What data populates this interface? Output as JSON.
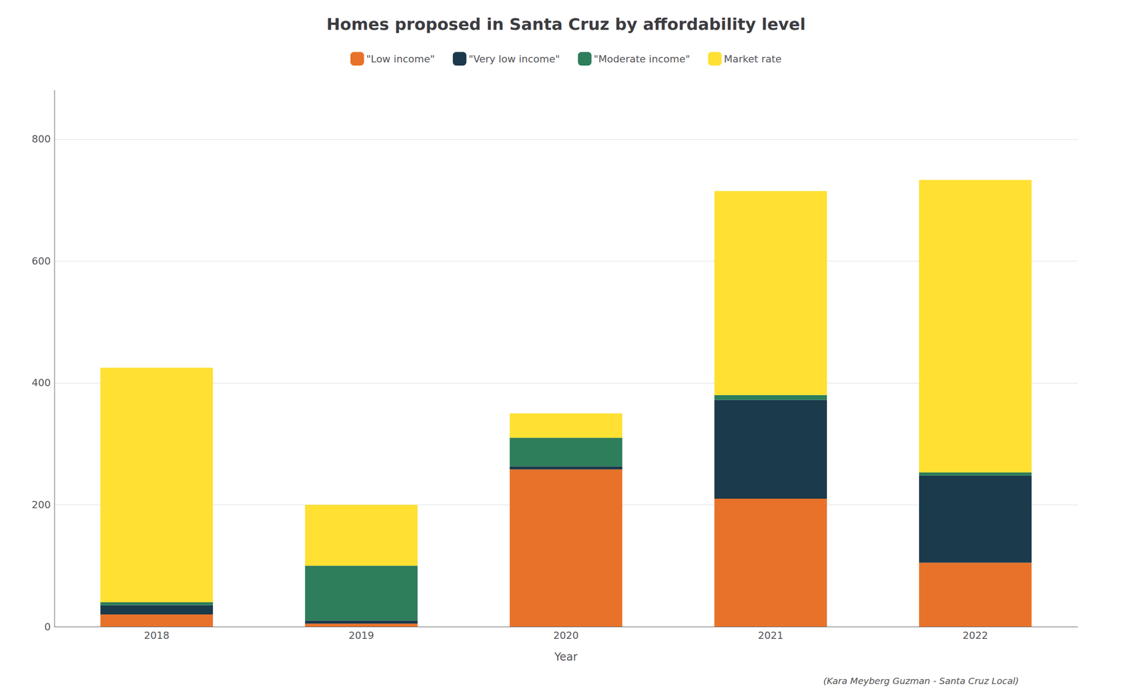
{
  "chart_data": {
    "type": "bar",
    "stacked": true,
    "title": "Homes proposed in Santa Cruz by affordability level",
    "xlabel": "Year",
    "categories": [
      "2018",
      "2019",
      "2020",
      "2021",
      "2022"
    ],
    "series": [
      {
        "name": "\"Low income\"",
        "color": "#E8722A",
        "values": [
          20,
          5,
          258,
          210,
          105
        ]
      },
      {
        "name": "\"Very low income\"",
        "color": "#1B3A4B",
        "values": [
          15,
          5,
          5,
          162,
          143
        ]
      },
      {
        "name": "\"Moderate income\"",
        "color": "#2E7D5B",
        "values": [
          5,
          90,
          47,
          8,
          5
        ]
      },
      {
        "name": "Market rate",
        "color": "#FFE033",
        "values": [
          385,
          100,
          40,
          335,
          480
        ]
      }
    ],
    "ylim": [
      0,
      880
    ],
    "yticks": [
      0,
      200,
      400,
      600,
      800
    ],
    "grid": true,
    "legend": "top",
    "annotations": [
      {
        "text": "(Kara Meyberg Guzman - Santa Cruz Local)"
      }
    ]
  }
}
